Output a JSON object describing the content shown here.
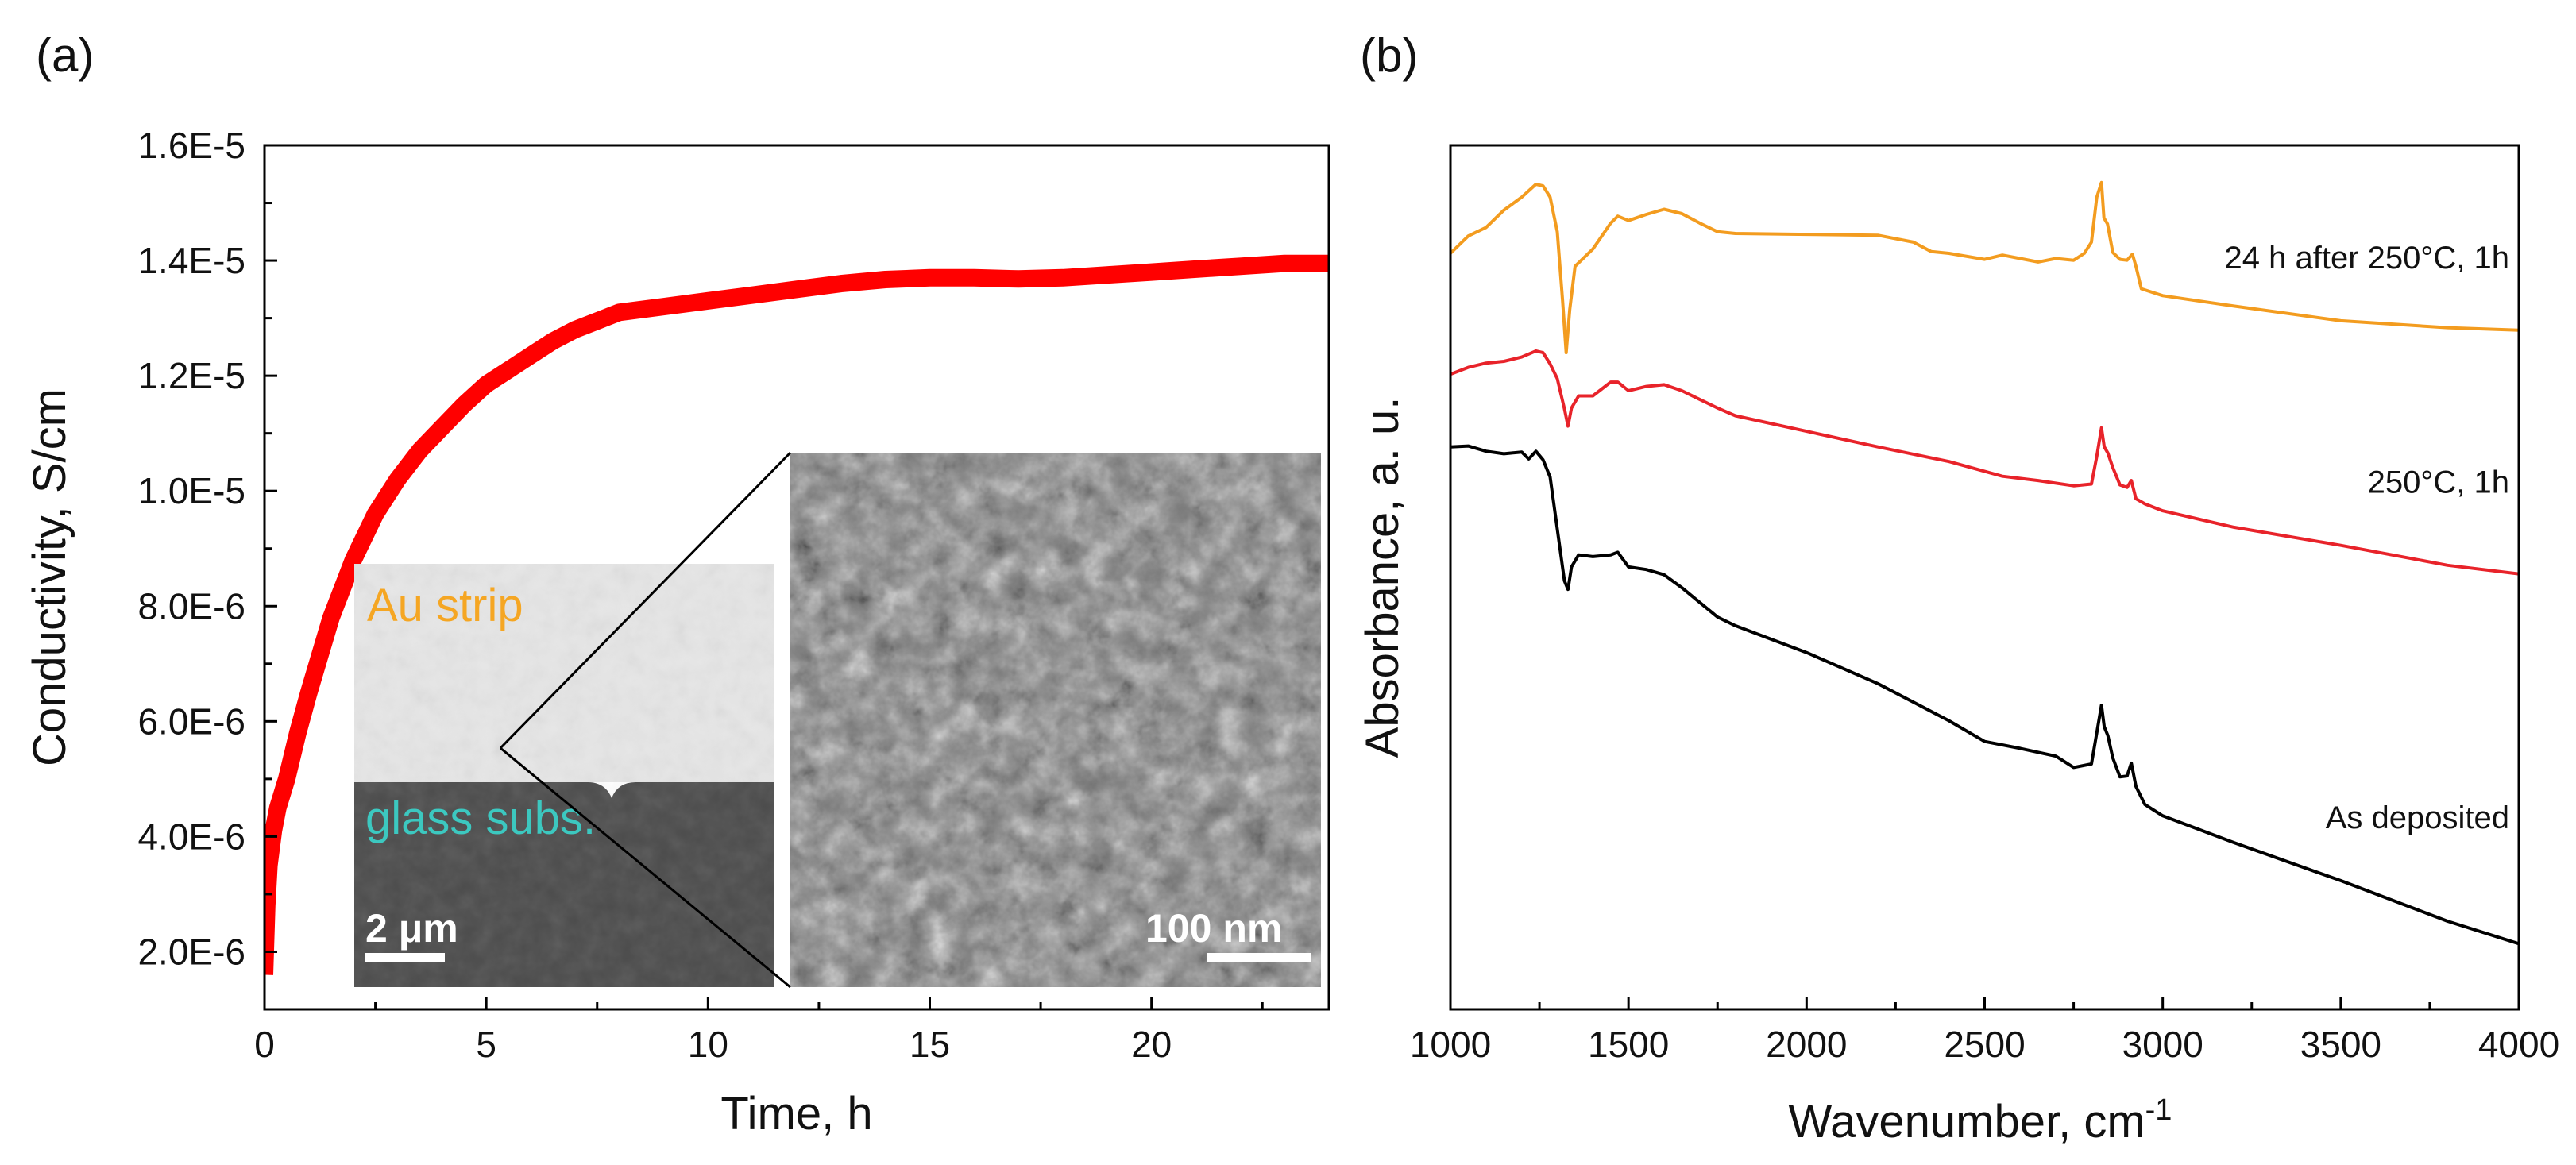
{
  "figure": {
    "panel_a_label": "(a)",
    "panel_b_label": "(b)"
  },
  "chart_data": [
    {
      "panel": "(a)",
      "type": "line",
      "xlabel": "Time, h",
      "ylabel": "Conductivity, S/cm",
      "xlim": [
        0,
        24
      ],
      "ylim": [
        1e-06,
        1.6e-05
      ],
      "x_ticks": [
        0,
        5,
        10,
        15,
        20
      ],
      "x_tick_labels": [
        "0",
        "5",
        "10",
        "15",
        "20"
      ],
      "y_ticks": [
        2e-06,
        4e-06,
        6e-06,
        8e-06,
        1e-05,
        1.2e-05,
        1.4e-05,
        1.6e-05
      ],
      "y_tick_labels": [
        "2.0E-6",
        "4.0E-6",
        "6.0E-6",
        "8.0E-6",
        "1.0E-5",
        "1.2E-5",
        "1.4E-5",
        "1.6E-5"
      ],
      "series": [
        {
          "name": "conductivity",
          "color": "#ff0000",
          "x": [
            0,
            0.05,
            0.1,
            0.2,
            0.3,
            0.5,
            0.75,
            1.0,
            1.5,
            2.0,
            2.5,
            3.0,
            3.5,
            4.0,
            4.5,
            5.0,
            5.5,
            6.0,
            6.5,
            7.0,
            7.5,
            8.0,
            9.0,
            10.0,
            11.0,
            12.0,
            13.0,
            14.0,
            15.0,
            16.0,
            17.0,
            18.0,
            19.0,
            20.0,
            21.0,
            22.0,
            23.0,
            24.0
          ],
          "y": [
            1.6e-06,
            2.8e-06,
            3.5e-06,
            4.1e-06,
            4.5e-06,
            5e-06,
            5.8e-06,
            6.5e-06,
            7.8e-06,
            8.8e-06,
            9.6e-06,
            1.02e-05,
            1.07e-05,
            1.11e-05,
            1.15e-05,
            1.185e-05,
            1.21e-05,
            1.235e-05,
            1.26e-05,
            1.28e-05,
            1.295e-05,
            1.31e-05,
            1.32e-05,
            1.33e-05,
            1.34e-05,
            1.35e-05,
            1.36e-05,
            1.367e-05,
            1.37e-05,
            1.37e-05,
            1.368e-05,
            1.37e-05,
            1.375e-05,
            1.38e-05,
            1.385e-05,
            1.39e-05,
            1.395e-05,
            1.395e-05
          ]
        }
      ],
      "inset": {
        "left_image": {
          "top_label": "Au strip",
          "bottom_label": "glass subs.",
          "scale_bar": "2 μm",
          "top_color": "#f5a623",
          "bottom_color": "#3cc8c0"
        },
        "right_image": {
          "scale_bar": "100 nm"
        }
      }
    },
    {
      "panel": "(b)",
      "type": "line",
      "xlabel": "Wavenumber, cm",
      "xlabel_superscript": "-1",
      "ylabel": "Absorbance, a. u.",
      "xlim": [
        1000,
        4000
      ],
      "ylim": [
        0,
        100
      ],
      "x_ticks": [
        1000,
        1500,
        2000,
        2500,
        3000,
        3500,
        4000
      ],
      "x_tick_labels": [
        "1000",
        "1500",
        "2000",
        "2500",
        "3000",
        "3500",
        "4000"
      ],
      "series": [
        {
          "name": "24 h after 250°C, 1h",
          "color": "#f39c1f",
          "x": [
            1000,
            1050,
            1100,
            1150,
            1200,
            1240,
            1260,
            1280,
            1300,
            1315,
            1325,
            1335,
            1350,
            1400,
            1450,
            1470,
            1500,
            1550,
            1600,
            1650,
            1700,
            1750,
            1800,
            2000,
            2200,
            2300,
            2350,
            2400,
            2500,
            2550,
            2600,
            2650,
            2700,
            2750,
            2780,
            2800,
            2815,
            2828,
            2835,
            2845,
            2860,
            2880,
            2900,
            2915,
            2925,
            2940,
            3000,
            3200,
            3500,
            3800,
            4000
          ],
          "y": [
            87.5,
            89.5,
            90.5,
            92.5,
            94,
            95.5,
            95.3,
            94,
            90,
            82,
            76,
            81,
            86,
            88,
            91,
            91.8,
            91.3,
            92,
            92.6,
            92.1,
            91,
            90,
            89.8,
            89.7,
            89.6,
            88.8,
            87.7,
            87.5,
            86.8,
            87.3,
            86.9,
            86.5,
            86.9,
            86.7,
            87.5,
            88.8,
            94,
            95.7,
            91.6,
            90.9,
            87.6,
            86.8,
            86.7,
            87.4,
            86,
            83.4,
            82.6,
            81.4,
            79.7,
            78.9,
            78.6
          ]
        },
        {
          "name": "250°C, 1h",
          "color": "#e8232a",
          "x": [
            1000,
            1050,
            1100,
            1150,
            1200,
            1240,
            1260,
            1280,
            1300,
            1320,
            1330,
            1340,
            1360,
            1400,
            1450,
            1470,
            1500,
            1550,
            1600,
            1650,
            1700,
            1750,
            1800,
            2000,
            2200,
            2400,
            2550,
            2650,
            2750,
            2800,
            2815,
            2828,
            2836,
            2846,
            2860,
            2880,
            2900,
            2912,
            2925,
            2950,
            3000,
            3200,
            3500,
            3800,
            4000
          ],
          "y": [
            73.5,
            74.3,
            74.8,
            75,
            75.5,
            76.2,
            76,
            74.7,
            73,
            69.5,
            67.5,
            69.6,
            71,
            71,
            72.6,
            72.6,
            71.6,
            72.1,
            72.3,
            71.6,
            70.6,
            69.6,
            68.7,
            66.9,
            65.1,
            63.4,
            61.7,
            61.2,
            60.6,
            60.8,
            64,
            67.3,
            65.1,
            64.4,
            62.7,
            60.7,
            60.4,
            61.2,
            59.1,
            58.5,
            57.7,
            55.8,
            53.7,
            51.4,
            50.4
          ]
        },
        {
          "name": "As deposited",
          "color": "#000000",
          "x": [
            1000,
            1050,
            1100,
            1150,
            1200,
            1220,
            1240,
            1260,
            1280,
            1300,
            1320,
            1330,
            1340,
            1360,
            1400,
            1450,
            1470,
            1500,
            1550,
            1600,
            1650,
            1700,
            1750,
            1800,
            2000,
            2200,
            2400,
            2500,
            2600,
            2700,
            2750,
            2800,
            2815,
            2828,
            2836,
            2846,
            2860,
            2880,
            2900,
            2912,
            2925,
            2950,
            3000,
            3200,
            3500,
            3800,
            4000
          ],
          "y": [
            65.1,
            65.2,
            64.6,
            64.3,
            64.5,
            63.7,
            64.6,
            63.6,
            61.6,
            55.6,
            49.6,
            48.6,
            51.2,
            52.6,
            52.4,
            52.6,
            52.9,
            51.2,
            50.9,
            50.3,
            48.8,
            47.1,
            45.4,
            44.4,
            41.3,
            37.7,
            33.4,
            31,
            30.2,
            29.3,
            28,
            28.4,
            32,
            35.2,
            32.7,
            31.7,
            29.1,
            26.9,
            27,
            28.5,
            25.8,
            23.7,
            22.4,
            19.3,
            14.9,
            10.2,
            7.6
          ]
        }
      ]
    }
  ]
}
